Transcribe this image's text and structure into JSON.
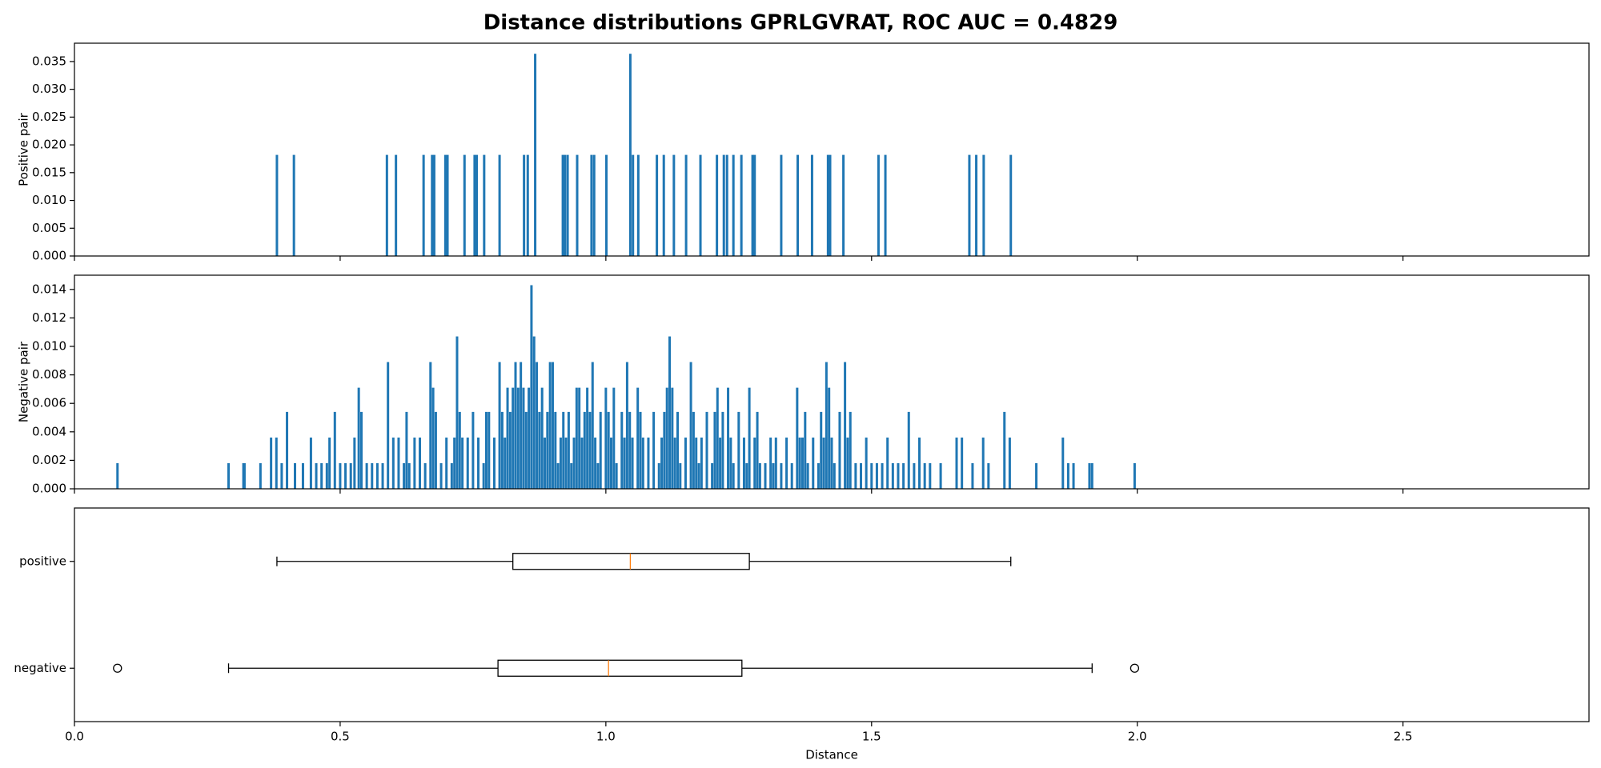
{
  "title": "Distance distributions GPRLGVRAT, ROC AUC = 0.4829",
  "chart_data": [
    {
      "type": "bar",
      "ylabel": "Positive pair",
      "color": "#1f77b4",
      "xlim": [
        0,
        2.85
      ],
      "ylim": [
        0,
        0.0383
      ],
      "yticks": [
        {
          "value": 0,
          "label": "0.000"
        },
        {
          "value": 0.005,
          "label": "0.005"
        },
        {
          "value": 0.01,
          "label": "0.010"
        },
        {
          "value": 0.015,
          "label": "0.015"
        },
        {
          "value": 0.02,
          "label": "0.020"
        },
        {
          "value": 0.025,
          "label": "0.025"
        },
        {
          "value": 0.03,
          "label": "0.030"
        },
        {
          "value": 0.035,
          "label": "0.035"
        }
      ],
      "x": [
        0.381,
        0.413,
        0.588,
        0.605,
        0.657,
        0.673,
        0.677,
        0.698,
        0.702,
        0.734,
        0.753,
        0.757,
        0.771,
        0.8,
        0.846,
        0.853,
        0.867,
        0.919,
        0.923,
        0.928,
        0.946,
        0.973,
        0.978,
        1.001,
        1.046,
        1.051,
        1.061,
        1.096,
        1.109,
        1.128,
        1.151,
        1.178,
        1.209,
        1.222,
        1.228,
        1.24,
        1.255,
        1.276,
        1.28,
        1.33,
        1.361,
        1.388,
        1.418,
        1.422,
        1.447,
        1.513,
        1.526,
        1.684,
        1.697,
        1.711,
        1.762
      ],
      "values": [
        0.0182,
        0.0182,
        0.0182,
        0.0182,
        0.0182,
        0.0182,
        0.0182,
        0.0182,
        0.0182,
        0.0182,
        0.0182,
        0.0182,
        0.0182,
        0.0182,
        0.0182,
        0.0182,
        0.0364,
        0.0182,
        0.0182,
        0.0182,
        0.0182,
        0.0182,
        0.0182,
        0.0182,
        0.0364,
        0.0182,
        0.0182,
        0.0182,
        0.0182,
        0.0182,
        0.0182,
        0.0182,
        0.0182,
        0.0182,
        0.0182,
        0.0182,
        0.0182,
        0.0182,
        0.0182,
        0.0182,
        0.0182,
        0.0182,
        0.0182,
        0.0182,
        0.0182,
        0.0182,
        0.0182,
        0.0182,
        0.0182,
        0.0182,
        0.0182
      ]
    },
    {
      "type": "bar",
      "ylabel": "Negative pair",
      "color": "#1f77b4",
      "xlim": [
        0,
        2.85
      ],
      "ylim": [
        0,
        0.015
      ],
      "yticks": [
        {
          "value": 0,
          "label": "0.000"
        },
        {
          "value": 0.002,
          "label": "0.002"
        },
        {
          "value": 0.004,
          "label": "0.004"
        },
        {
          "value": 0.006,
          "label": "0.006"
        },
        {
          "value": 0.008,
          "label": "0.008"
        },
        {
          "value": 0.01,
          "label": "0.010"
        },
        {
          "value": 0.012,
          "label": "0.012"
        },
        {
          "value": 0.014,
          "label": "0.014"
        }
      ],
      "x": [
        0.081,
        0.29,
        0.318,
        0.32,
        0.35,
        0.37,
        0.38,
        0.39,
        0.4,
        0.415,
        0.43,
        0.445,
        0.455,
        0.465,
        0.475,
        0.48,
        0.49,
        0.5,
        0.51,
        0.52,
        0.527,
        0.535,
        0.54,
        0.55,
        0.56,
        0.57,
        0.58,
        0.59,
        0.6,
        0.61,
        0.62,
        0.625,
        0.63,
        0.64,
        0.65,
        0.66,
        0.67,
        0.675,
        0.68,
        0.69,
        0.7,
        0.71,
        0.715,
        0.72,
        0.725,
        0.73,
        0.74,
        0.75,
        0.76,
        0.77,
        0.775,
        0.78,
        0.79,
        0.8,
        0.805,
        0.81,
        0.815,
        0.82,
        0.825,
        0.83,
        0.835,
        0.84,
        0.845,
        0.85,
        0.855,
        0.86,
        0.865,
        0.87,
        0.875,
        0.88,
        0.885,
        0.89,
        0.895,
        0.9,
        0.905,
        0.91,
        0.915,
        0.92,
        0.925,
        0.93,
        0.935,
        0.94,
        0.945,
        0.95,
        0.955,
        0.96,
        0.965,
        0.97,
        0.975,
        0.98,
        0.985,
        0.99,
        1.0,
        1.005,
        1.01,
        1.015,
        1.02,
        1.03,
        1.035,
        1.04,
        1.045,
        1.05,
        1.06,
        1.065,
        1.07,
        1.08,
        1.09,
        1.1,
        1.105,
        1.11,
        1.115,
        1.12,
        1.125,
        1.13,
        1.135,
        1.14,
        1.15,
        1.16,
        1.165,
        1.17,
        1.175,
        1.18,
        1.19,
        1.2,
        1.205,
        1.21,
        1.215,
        1.22,
        1.23,
        1.235,
        1.24,
        1.25,
        1.26,
        1.265,
        1.27,
        1.28,
        1.285,
        1.29,
        1.3,
        1.31,
        1.315,
        1.32,
        1.33,
        1.34,
        1.35,
        1.36,
        1.365,
        1.37,
        1.375,
        1.38,
        1.39,
        1.4,
        1.405,
        1.41,
        1.415,
        1.42,
        1.425,
        1.43,
        1.44,
        1.45,
        1.455,
        1.46,
        1.47,
        1.48,
        1.49,
        1.5,
        1.51,
        1.52,
        1.53,
        1.54,
        1.55,
        1.56,
        1.57,
        1.58,
        1.59,
        1.6,
        1.61,
        1.63,
        1.66,
        1.67,
        1.69,
        1.71,
        1.72,
        1.75,
        1.76,
        1.81,
        1.86,
        1.87,
        1.88,
        1.91,
        1.915,
        1.995
      ],
      "values": [
        0.0018,
        0.0018,
        0.0018,
        0.0018,
        0.0018,
        0.0036,
        0.0036,
        0.0018,
        0.0054,
        0.0018,
        0.0018,
        0.0036,
        0.0018,
        0.0018,
        0.0018,
        0.0036,
        0.0054,
        0.0018,
        0.0018,
        0.0018,
        0.0036,
        0.0071,
        0.0054,
        0.0018,
        0.0018,
        0.0018,
        0.0018,
        0.0089,
        0.0036,
        0.0036,
        0.0018,
        0.0054,
        0.0018,
        0.0036,
        0.0036,
        0.0018,
        0.0089,
        0.0071,
        0.0054,
        0.0018,
        0.0036,
        0.0018,
        0.0036,
        0.0107,
        0.0054,
        0.0036,
        0.0036,
        0.0054,
        0.0036,
        0.0018,
        0.0054,
        0.0054,
        0.0036,
        0.0089,
        0.0054,
        0.0036,
        0.0071,
        0.0054,
        0.0071,
        0.0089,
        0.0071,
        0.0089,
        0.0071,
        0.0054,
        0.0071,
        0.0143,
        0.0107,
        0.0089,
        0.0054,
        0.0071,
        0.0036,
        0.0054,
        0.0089,
        0.0089,
        0.0054,
        0.0018,
        0.0036,
        0.0054,
        0.0036,
        0.0054,
        0.0018,
        0.0036,
        0.0071,
        0.0071,
        0.0036,
        0.0054,
        0.0071,
        0.0054,
        0.0089,
        0.0036,
        0.0018,
        0.0054,
        0.0071,
        0.0054,
        0.0036,
        0.0071,
        0.0018,
        0.0054,
        0.0036,
        0.0089,
        0.0054,
        0.0036,
        0.0071,
        0.0054,
        0.0036,
        0.0036,
        0.0054,
        0.0018,
        0.0036,
        0.0054,
        0.0071,
        0.0107,
        0.0071,
        0.0036,
        0.0054,
        0.0018,
        0.0036,
        0.0089,
        0.0054,
        0.0036,
        0.0018,
        0.0036,
        0.0054,
        0.0018,
        0.0054,
        0.0071,
        0.0036,
        0.0054,
        0.0071,
        0.0036,
        0.0018,
        0.0054,
        0.0036,
        0.0018,
        0.0071,
        0.0036,
        0.0054,
        0.0018,
        0.0018,
        0.0036,
        0.0018,
        0.0036,
        0.0018,
        0.0036,
        0.0018,
        0.0071,
        0.0036,
        0.0036,
        0.0054,
        0.0018,
        0.0036,
        0.0018,
        0.0054,
        0.0036,
        0.0089,
        0.0071,
        0.0036,
        0.0018,
        0.0054,
        0.0089,
        0.0036,
        0.0054,
        0.0018,
        0.0018,
        0.0036,
        0.0018,
        0.0018,
        0.0018,
        0.0036,
        0.0018,
        0.0018,
        0.0018,
        0.0054,
        0.0018,
        0.0036,
        0.0018,
        0.0018,
        0.0018,
        0.0036,
        0.0036,
        0.0018,
        0.0036,
        0.0018,
        0.0054,
        0.0036,
        0.0018,
        0.0036,
        0.0018,
        0.0018,
        0.0018,
        0.0018,
        0.0018
      ]
    },
    {
      "type": "box",
      "xlabel": "Distance",
      "color": "#000000",
      "median_color": "#ff7f0e",
      "xlim": [
        0,
        2.85
      ],
      "xticks": [
        {
          "value": 0,
          "label": "0.0"
        },
        0.5,
        {
          "value": 1,
          "label": "1.0"
        },
        1.5,
        {
          "value": 2,
          "label": "2.0"
        },
        2.5
      ],
      "categories": [
        "positive",
        "negative"
      ],
      "boxes": [
        {
          "whislo": 0.381,
          "q1": 0.825,
          "median": 1.046,
          "q3": 1.27,
          "whishi": 1.762,
          "fliers": []
        },
        {
          "whislo": 0.29,
          "q1": 0.797,
          "median": 1.005,
          "q3": 1.256,
          "whishi": 1.915,
          "fliers": [
            0.081,
            1.995
          ]
        }
      ]
    }
  ]
}
